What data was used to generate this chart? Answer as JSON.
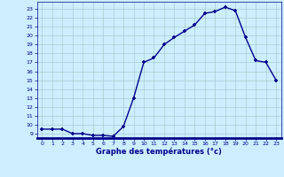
{
  "hours": [
    0,
    1,
    2,
    3,
    4,
    5,
    6,
    7,
    8,
    9,
    10,
    11,
    12,
    13,
    14,
    15,
    16,
    17,
    18,
    19,
    20,
    21,
    22,
    23
  ],
  "temperatures": [
    9.5,
    9.5,
    9.5,
    9.0,
    9.0,
    8.8,
    8.8,
    8.7,
    9.8,
    13.0,
    17.0,
    17.5,
    19.0,
    19.8,
    20.5,
    21.2,
    22.5,
    22.7,
    23.2,
    22.8,
    19.8,
    17.2,
    17.0,
    15.0
  ],
  "xlabel": "Graphe des températures (°c)",
  "bg_color": "#cceeff",
  "line_color": "#00008b",
  "grid_color": "#aacccc",
  "yticks": [
    9,
    10,
    11,
    12,
    13,
    14,
    15,
    16,
    17,
    18,
    19,
    20,
    21,
    22,
    23
  ],
  "xticks": [
    0,
    1,
    2,
    3,
    4,
    5,
    6,
    7,
    8,
    9,
    10,
    11,
    12,
    13,
    14,
    15,
    16,
    17,
    18,
    19,
    20,
    21,
    22,
    23
  ],
  "ylim": [
    8.5,
    23.8
  ],
  "xlim": [
    -0.5,
    23.5
  ]
}
